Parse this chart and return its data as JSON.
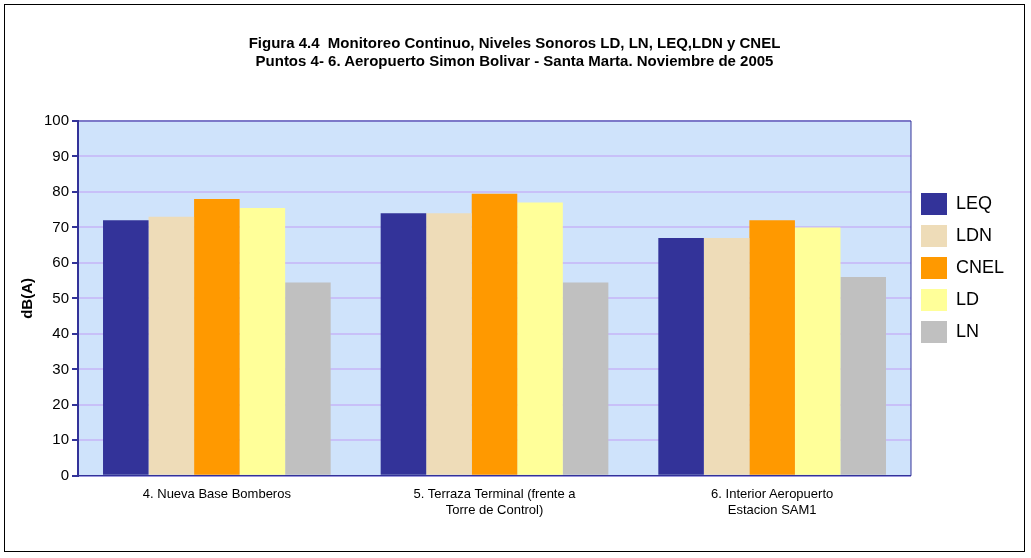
{
  "chart_data": {
    "type": "bar",
    "title": "Figura 4.4  Monitoreo Continuo, Niveles Sonoros LD, LN, LEQ,LDN y CNEL\nPuntos 4- 6. Aeropuerto Simon Bolivar - Santa Marta. Noviembre de 2005",
    "ylabel": "dB(A)",
    "categories": [
      "4. Nueva Base Bomberos",
      "5. Terraza Terminal (frente a Torre de Control)",
      "6. Interior Aeropuerto Estacion SAM1"
    ],
    "series": [
      {
        "name": "LEQ",
        "color": "#333399",
        "values": [
          72,
          74,
          67
        ]
      },
      {
        "name": "LDN",
        "color": "#eedcb8",
        "values": [
          73,
          74,
          67
        ]
      },
      {
        "name": "CNEL",
        "color": "#ff9900",
        "values": [
          78,
          79.5,
          72
        ]
      },
      {
        "name": "LD",
        "color": "#ffff99",
        "values": [
          75.5,
          77,
          70
        ]
      },
      {
        "name": "LN",
        "color": "#c0c0c0",
        "values": [
          54.5,
          54.5,
          56
        ]
      }
    ],
    "ylim": [
      0,
      100
    ],
    "yticks": [
      0,
      10,
      20,
      30,
      40,
      50,
      60,
      70,
      80,
      90,
      100
    ],
    "grid": "y",
    "legend": "right"
  }
}
